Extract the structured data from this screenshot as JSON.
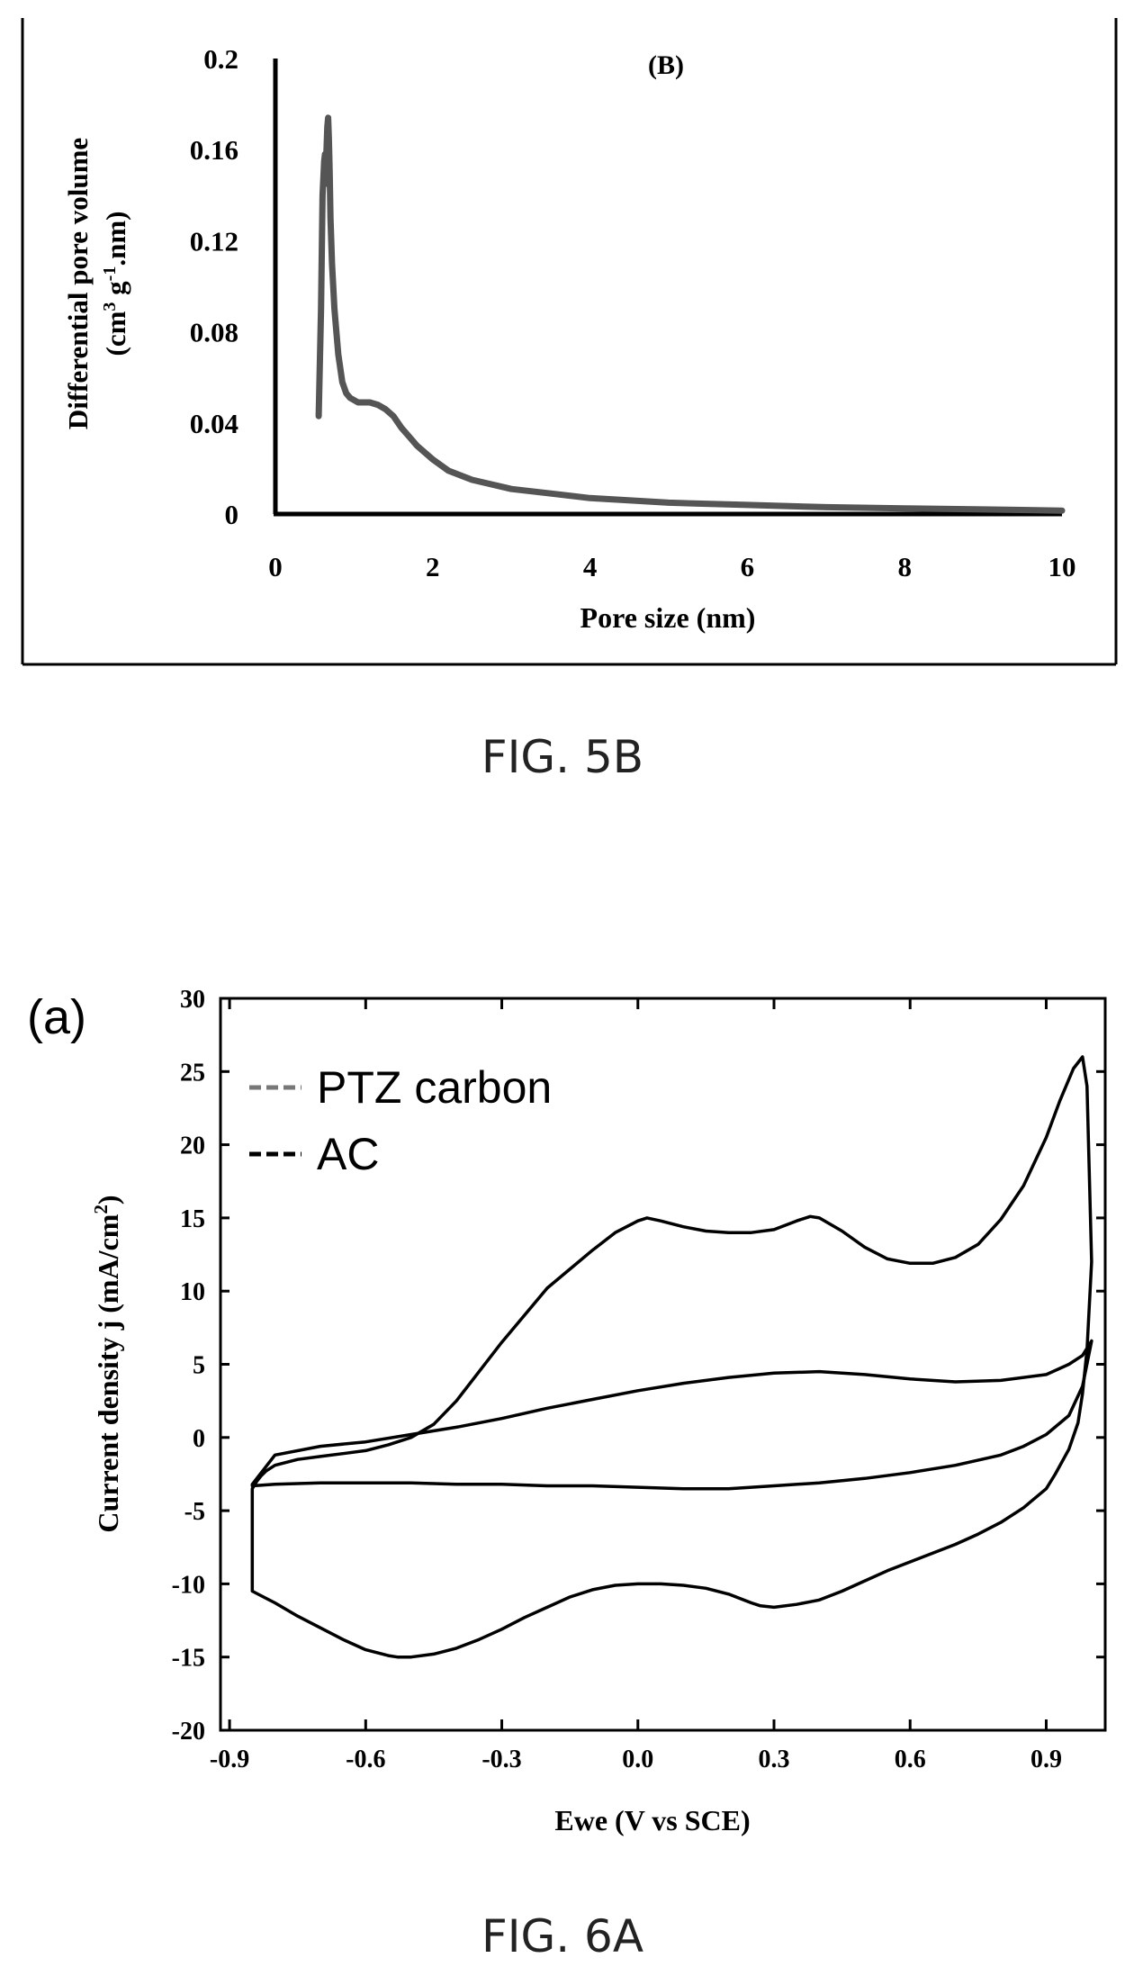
{
  "figures": [
    {
      "caption": "FIG. 5B",
      "panel_label": "(B)",
      "ylabel_line1": "Differential pore volume",
      "ylabel_line2_parts": [
        "(cm",
        "3",
        " g",
        "-1",
        ".nm)"
      ],
      "colors": {
        "line": "#555555",
        "frame": "#000000"
      }
    },
    {
      "caption": "FIG. 6A",
      "panel_label": "(a)",
      "ylabel_parts": [
        "Current density j (mA/cm",
        "2",
        ")"
      ],
      "colors": {
        "ptz": "#777777",
        "ac": "#000000",
        "frame": "#000000"
      }
    }
  ],
  "chart_data": [
    {
      "type": "line",
      "xlabel": "Pore size (nm)",
      "xlim": [
        0,
        10
      ],
      "ylim": [
        0,
        0.2
      ],
      "xticks": [
        "0",
        "2",
        "4",
        "6",
        "8",
        "10"
      ],
      "yticks": [
        "0",
        "0.04",
        "0.08",
        "0.12",
        "0.16",
        "0.2"
      ],
      "grid": false,
      "series": [
        {
          "x": [
            0.55,
            0.58,
            0.6,
            0.62,
            0.63,
            0.64,
            0.65,
            0.66,
            0.67,
            0.68,
            0.69,
            0.7,
            0.72,
            0.75,
            0.8,
            0.85,
            0.9,
            0.95,
            1.0,
            1.05,
            1.1,
            1.2,
            1.3,
            1.4,
            1.5,
            1.6,
            1.7,
            1.8,
            2.0,
            2.2,
            2.5,
            3.0,
            3.5,
            4.0,
            5.0,
            6.0,
            7.0,
            8.0,
            9.0,
            10.0
          ],
          "y": [
            0.043,
            0.09,
            0.14,
            0.155,
            0.158,
            0.145,
            0.16,
            0.17,
            0.174,
            0.165,
            0.15,
            0.13,
            0.11,
            0.09,
            0.07,
            0.058,
            0.053,
            0.051,
            0.05,
            0.049,
            0.049,
            0.049,
            0.048,
            0.046,
            0.043,
            0.038,
            0.034,
            0.03,
            0.024,
            0.019,
            0.015,
            0.011,
            0.009,
            0.007,
            0.005,
            0.004,
            0.003,
            0.0025,
            0.002,
            0.0015
          ]
        }
      ]
    },
    {
      "type": "line",
      "xlabel": "Ewe (V vs SCE)",
      "xlim": [
        -0.92,
        1.03
      ],
      "ylim": [
        -20,
        30
      ],
      "xticks": [
        "-0.9",
        "-0.6",
        "-0.3",
        "0.0",
        "0.3",
        "0.6",
        "0.9"
      ],
      "yticks": [
        "-20",
        "-15",
        "-10",
        "-5",
        "0",
        "5",
        "10",
        "15",
        "20",
        "25",
        "30"
      ],
      "grid": false,
      "legend_position": "top-left",
      "series": [
        {
          "name": "PTZ carbon",
          "x": [
            -0.85,
            -0.84,
            -0.83,
            -0.82,
            -0.8,
            -0.75,
            -0.7,
            -0.65,
            -0.6,
            -0.55,
            -0.5,
            -0.45,
            -0.4,
            -0.3,
            -0.2,
            -0.1,
            -0.05,
            0.0,
            0.02,
            0.05,
            0.1,
            0.15,
            0.2,
            0.25,
            0.3,
            0.35,
            0.38,
            0.4,
            0.45,
            0.5,
            0.55,
            0.6,
            0.65,
            0.7,
            0.75,
            0.8,
            0.85,
            0.9,
            0.93,
            0.96,
            0.98,
            0.99,
            1.0,
            0.99,
            0.98,
            0.97,
            0.95,
            0.92,
            0.9,
            0.85,
            0.8,
            0.75,
            0.7,
            0.65,
            0.6,
            0.55,
            0.5,
            0.45,
            0.4,
            0.35,
            0.3,
            0.27,
            0.25,
            0.2,
            0.15,
            0.1,
            0.05,
            0.0,
            -0.05,
            -0.1,
            -0.15,
            -0.2,
            -0.25,
            -0.3,
            -0.35,
            -0.4,
            -0.45,
            -0.5,
            -0.53,
            -0.55,
            -0.6,
            -0.65,
            -0.7,
            -0.75,
            -0.8,
            -0.85
          ],
          "y": [
            -3.5,
            -3.0,
            -2.6,
            -2.3,
            -1.9,
            -1.5,
            -1.3,
            -1.1,
            -0.9,
            -0.5,
            0.0,
            0.9,
            2.5,
            6.5,
            10.2,
            12.8,
            14.0,
            14.8,
            15.0,
            14.8,
            14.4,
            14.1,
            14.0,
            14.0,
            14.2,
            14.8,
            15.1,
            15.0,
            14.1,
            13.0,
            12.2,
            11.9,
            11.9,
            12.3,
            13.2,
            14.9,
            17.2,
            20.5,
            23.0,
            25.2,
            26.0,
            24.0,
            12.0,
            6.0,
            3.0,
            1.0,
            -0.8,
            -2.5,
            -3.5,
            -4.8,
            -5.8,
            -6.6,
            -7.3,
            -7.9,
            -8.5,
            -9.1,
            -9.8,
            -10.5,
            -11.1,
            -11.4,
            -11.6,
            -11.5,
            -11.3,
            -10.7,
            -10.3,
            -10.1,
            -10.0,
            -10.0,
            -10.1,
            -10.4,
            -10.9,
            -11.6,
            -12.3,
            -13.1,
            -13.8,
            -14.4,
            -14.8,
            -15.0,
            -15.0,
            -14.9,
            -14.5,
            -13.8,
            -13.0,
            -12.2,
            -11.3,
            -10.5
          ]
        },
        {
          "name": "AC",
          "x": [
            -0.85,
            -0.8,
            -0.7,
            -0.6,
            -0.5,
            -0.4,
            -0.3,
            -0.2,
            -0.1,
            0.0,
            0.1,
            0.2,
            0.3,
            0.4,
            0.5,
            0.6,
            0.7,
            0.8,
            0.9,
            0.95,
            0.98,
            1.0,
            0.98,
            0.95,
            0.9,
            0.85,
            0.8,
            0.7,
            0.6,
            0.5,
            0.4,
            0.3,
            0.2,
            0.1,
            0.0,
            -0.1,
            -0.2,
            -0.3,
            -0.4,
            -0.5,
            -0.6,
            -0.7,
            -0.8,
            -0.85
          ],
          "y": [
            -3.2,
            -1.2,
            -0.6,
            -0.3,
            0.2,
            0.7,
            1.3,
            2.0,
            2.6,
            3.2,
            3.7,
            4.1,
            4.4,
            4.5,
            4.3,
            4.0,
            3.8,
            3.9,
            4.3,
            5.0,
            5.6,
            6.6,
            3.5,
            1.5,
            0.2,
            -0.6,
            -1.2,
            -1.9,
            -2.4,
            -2.8,
            -3.1,
            -3.3,
            -3.5,
            -3.5,
            -3.4,
            -3.3,
            -3.3,
            -3.2,
            -3.2,
            -3.1,
            -3.1,
            -3.1,
            -3.2,
            -3.3
          ]
        }
      ]
    }
  ]
}
